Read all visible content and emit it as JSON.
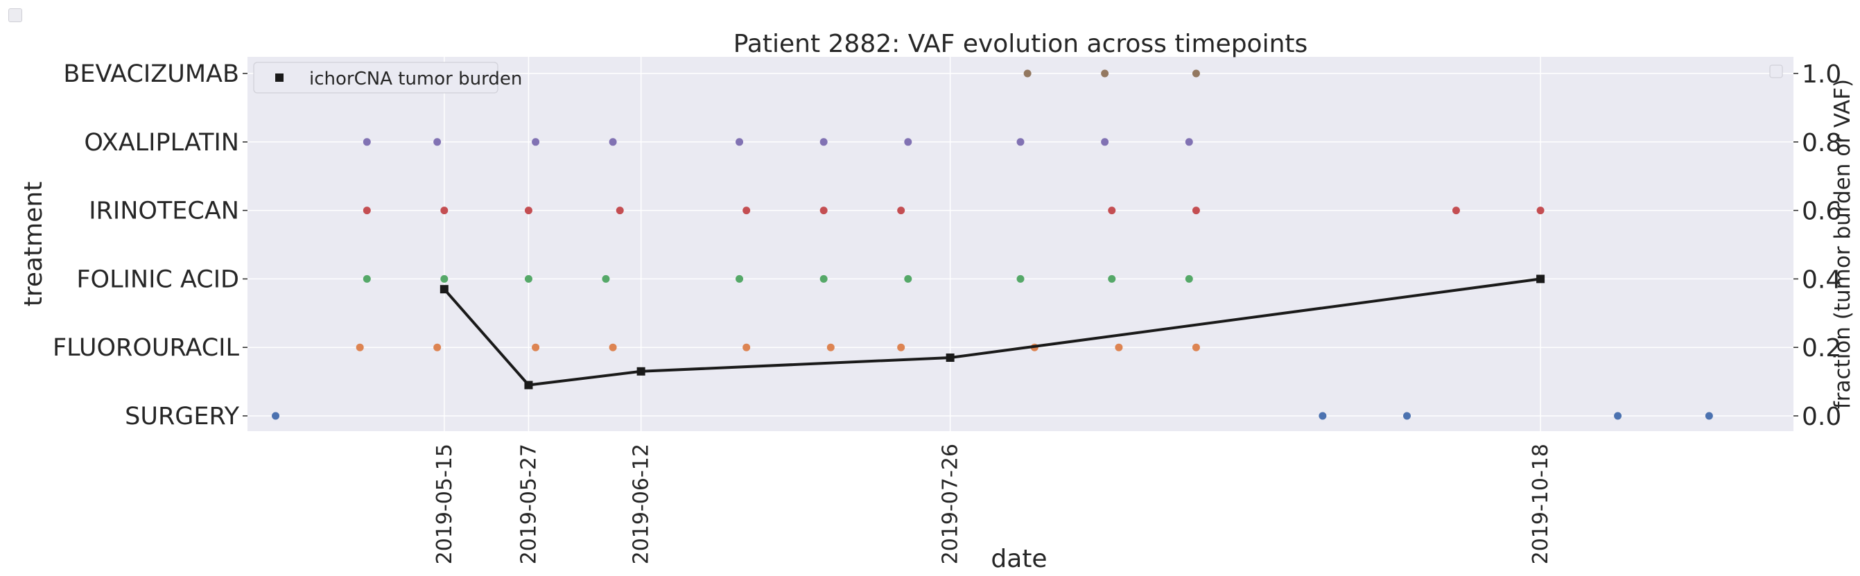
{
  "chart_data": {
    "type": "scatter",
    "title": "Patient 2882: VAF evolution across timepoints",
    "xlabel": "date",
    "ylabel": "treatment",
    "y2label": "fraction (tumor burden or VAF)",
    "categories": [
      "SURGERY",
      "FLUOROURACIL",
      "FOLINIC ACID",
      "IRINOTECAN",
      "OXALIPLATIN",
      "BEVACIZUMAB"
    ],
    "x_tick_labels": [
      "2019-05-15",
      "2019-05-27",
      "2019-06-12",
      "2019-07-26",
      "2019-10-18"
    ],
    "xlim": [
      "2019-04-17",
      "2019-11-23"
    ],
    "y2lim": [
      0,
      1
    ],
    "y2_ticks": [
      "0.0",
      "0.2",
      "0.4",
      "0.6",
      "0.8",
      "1.0"
    ],
    "grid": true,
    "legend_position": "top-left",
    "treatment_series": [
      {
        "category": "SURGERY",
        "color": "#4c72b0",
        "dates": [
          "2019-04-21",
          "2019-09-17",
          "2019-09-29",
          "2019-10-29",
          "2019-11-11"
        ]
      },
      {
        "category": "FLUOROURACIL",
        "color": "#dd8452",
        "dates": [
          "2019-05-03",
          "2019-05-14",
          "2019-05-28",
          "2019-06-08",
          "2019-06-27",
          "2019-07-09",
          "2019-07-19",
          "2019-08-07",
          "2019-08-19",
          "2019-08-30"
        ]
      },
      {
        "category": "FOLINIC ACID",
        "color": "#55a868",
        "dates": [
          "2019-05-04",
          "2019-05-15",
          "2019-05-27",
          "2019-06-07",
          "2019-06-26",
          "2019-07-08",
          "2019-07-20",
          "2019-08-05",
          "2019-08-18",
          "2019-08-29"
        ]
      },
      {
        "category": "IRINOTECAN",
        "color": "#c44e52",
        "dates": [
          "2019-05-04",
          "2019-05-15",
          "2019-05-27",
          "2019-06-09",
          "2019-06-27",
          "2019-07-08",
          "2019-07-19",
          "2019-08-18",
          "2019-08-30",
          "2019-10-06",
          "2019-10-18"
        ]
      },
      {
        "category": "OXALIPLATIN",
        "color": "#8172b3",
        "dates": [
          "2019-05-04",
          "2019-05-14",
          "2019-05-28",
          "2019-06-08",
          "2019-06-26",
          "2019-07-08",
          "2019-07-20",
          "2019-08-05",
          "2019-08-17",
          "2019-08-29"
        ]
      },
      {
        "category": "BEVACIZUMAB",
        "color": "#937860",
        "dates": [
          "2019-08-06",
          "2019-08-17",
          "2019-08-30"
        ]
      }
    ],
    "tumor_burden": {
      "name": "ichorCNA tumor burden",
      "color": "#1a1a1a",
      "dates": [
        "2019-05-15",
        "2019-05-27",
        "2019-06-12",
        "2019-07-26",
        "2019-10-18"
      ],
      "values": [
        0.37,
        0.09,
        0.13,
        0.17,
        0.4
      ]
    }
  }
}
